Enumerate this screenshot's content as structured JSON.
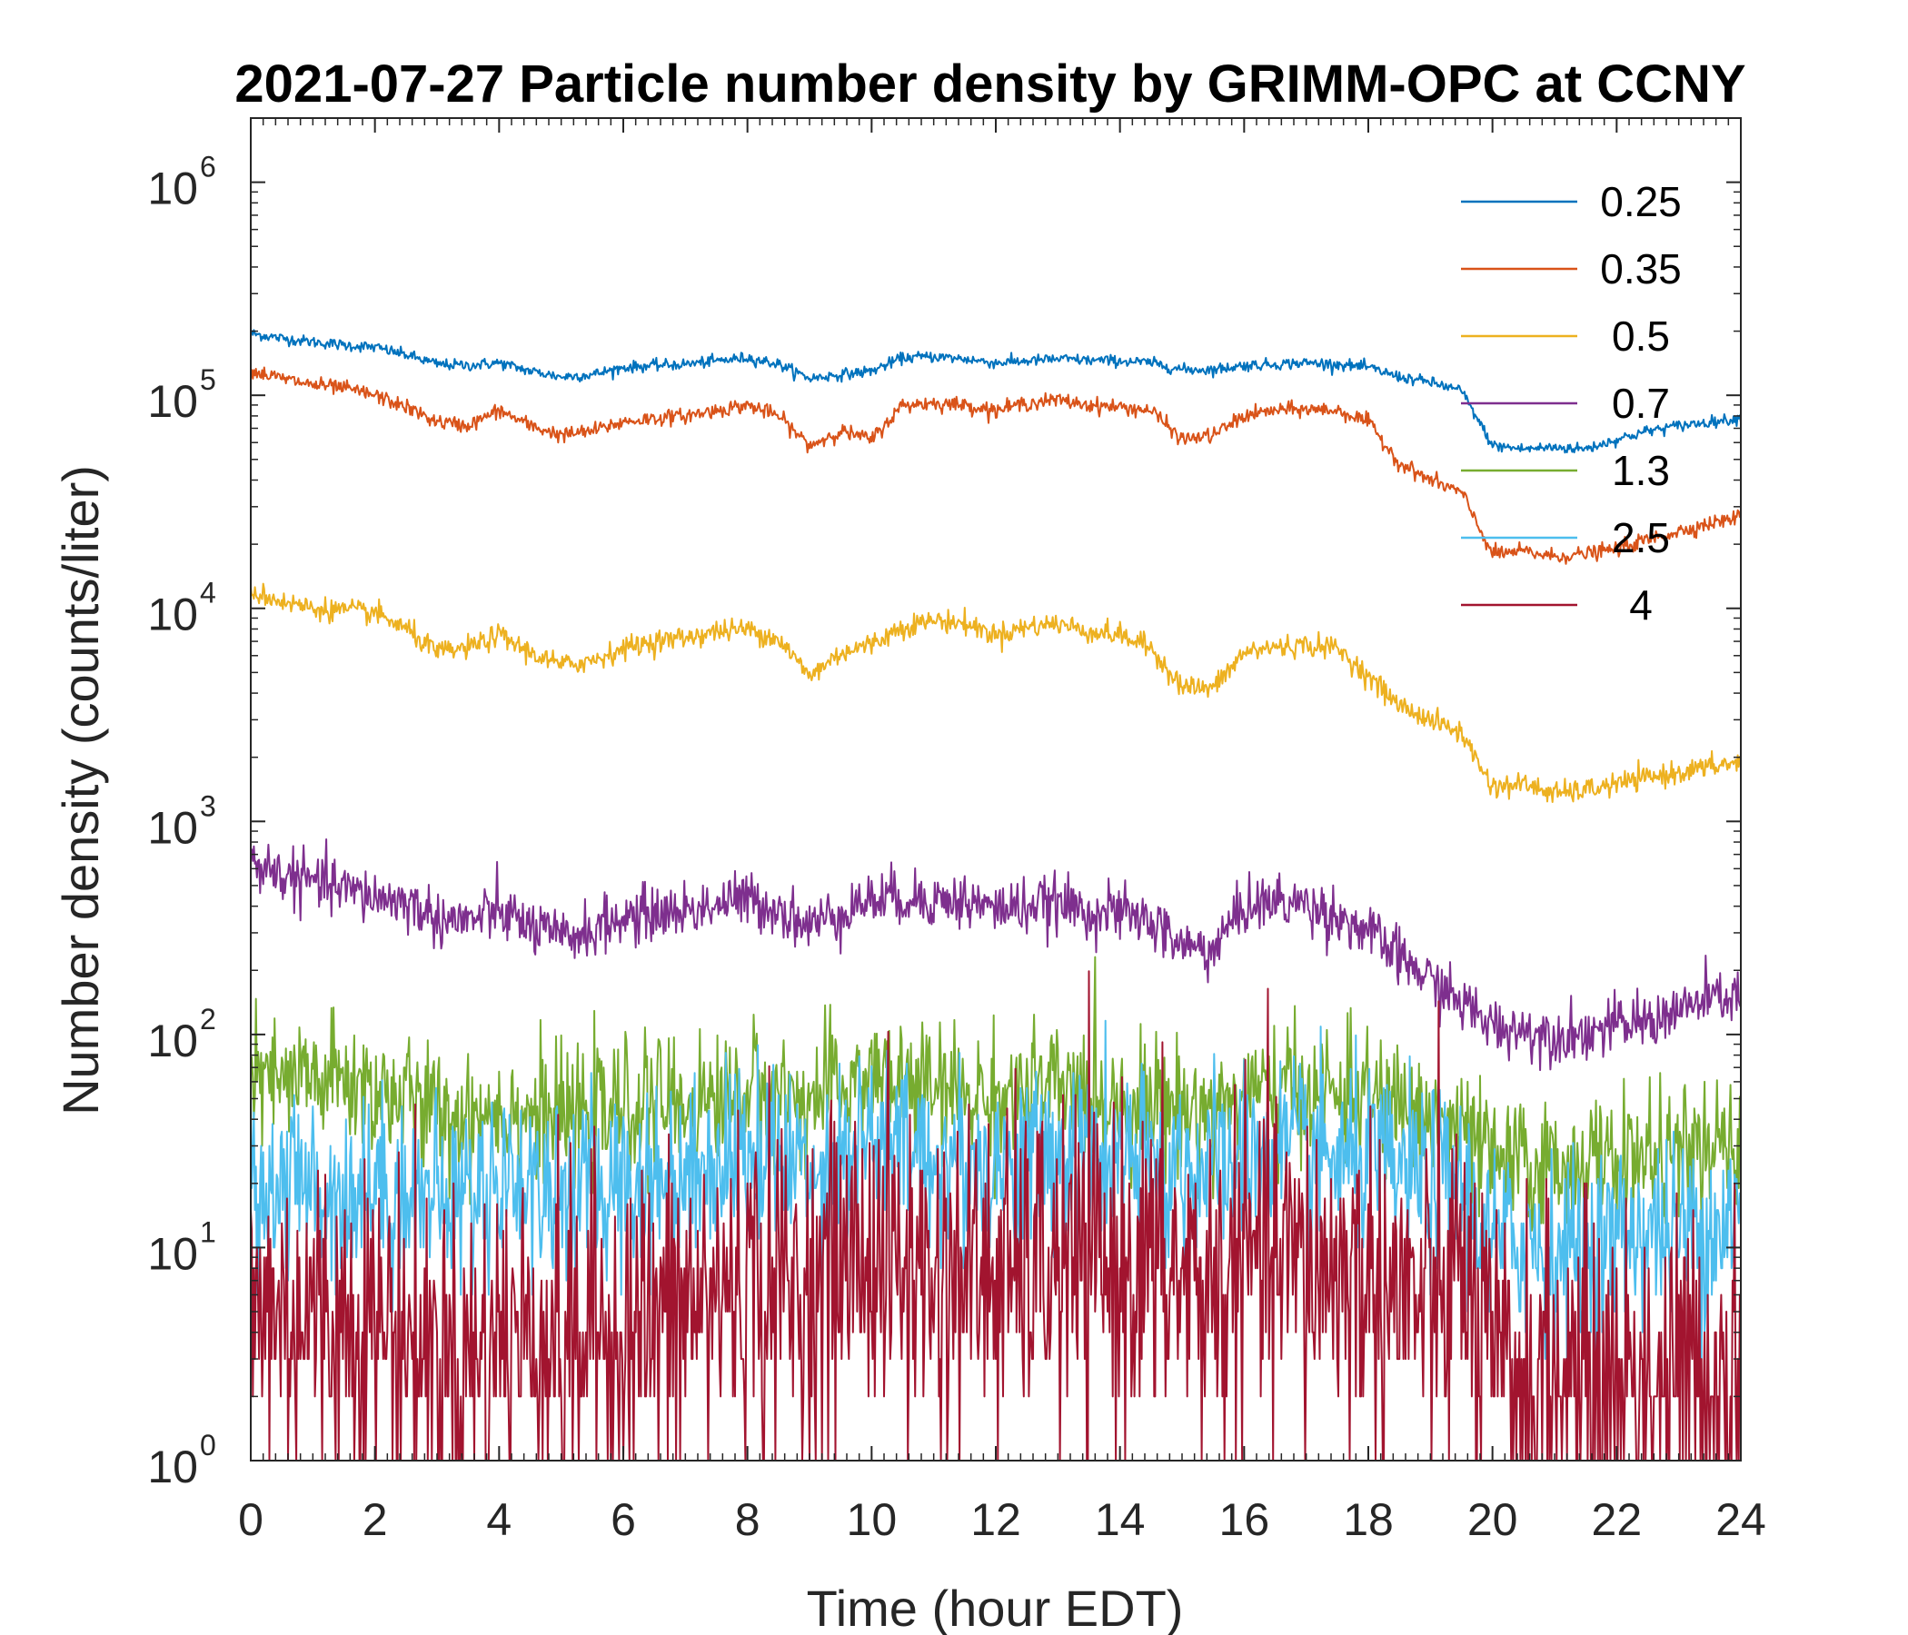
{
  "chart_data": {
    "type": "line",
    "title": "2021-07-27 Particle number density by GRIMM-OPC at CCNY",
    "xlabel": "Time (hour EDT)",
    "ylabel": "Number density (counts/liter)",
    "xlim": [
      0,
      24
    ],
    "ylim": [
      1,
      2000000
    ],
    "yscale": "log",
    "x_ticks": [
      0,
      2,
      4,
      6,
      8,
      10,
      12,
      14,
      16,
      18,
      20,
      22,
      24
    ],
    "y_ticks": [
      {
        "base": "10",
        "exp": "0",
        "value": 1
      },
      {
        "base": "10",
        "exp": "1",
        "value": 10
      },
      {
        "base": "10",
        "exp": "2",
        "value": 100
      },
      {
        "base": "10",
        "exp": "3",
        "value": 1000
      },
      {
        "base": "10",
        "exp": "4",
        "value": 10000
      },
      {
        "base": "10",
        "exp": "5",
        "value": 100000
      },
      {
        "base": "10",
        "exp": "6",
        "value": 1000000
      }
    ],
    "legend_position": "top-right",
    "x": [
      0,
      0.5,
      1,
      1.5,
      2,
      2.5,
      3,
      3.5,
      4,
      4.5,
      5,
      5.5,
      6,
      6.5,
      7,
      7.5,
      8,
      8.5,
      9,
      9.5,
      10,
      10.5,
      11,
      11.5,
      12,
      12.5,
      13,
      13.5,
      14,
      14.5,
      15,
      15.5,
      16,
      16.5,
      17,
      17.5,
      18,
      18.5,
      19,
      19.5,
      20,
      20.5,
      21,
      21.5,
      22,
      22.5,
      23,
      23.5,
      24
    ],
    "series": [
      {
        "name": "0.25",
        "color": "#0072BD",
        "noise": 0.03,
        "values": [
          195000,
          185000,
          178000,
          172000,
          168000,
          155000,
          140000,
          138000,
          142000,
          130000,
          122000,
          125000,
          135000,
          138000,
          140000,
          145000,
          150000,
          140000,
          120000,
          125000,
          130000,
          150000,
          152000,
          148000,
          142000,
          145000,
          148000,
          146000,
          145000,
          142000,
          132000,
          132000,
          138000,
          140000,
          142000,
          140000,
          135000,
          122000,
          115000,
          105000,
          58000,
          56000,
          57000,
          56000,
          62000,
          68000,
          72000,
          75000,
          78000
        ]
      },
      {
        "name": "0.35",
        "color": "#D95319",
        "noise": 0.04,
        "values": [
          130000,
          120000,
          112000,
          108000,
          100000,
          88000,
          75000,
          72000,
          85000,
          72000,
          65000,
          68000,
          75000,
          78000,
          80000,
          85000,
          90000,
          80000,
          58000,
          68000,
          62000,
          90000,
          92000,
          90000,
          85000,
          92000,
          95000,
          90000,
          88000,
          85000,
          62000,
          65000,
          80000,
          85000,
          86000,
          85000,
          75000,
          48000,
          40000,
          35000,
          18000,
          18500,
          17500,
          18000,
          19000,
          21000,
          23000,
          25000,
          27000
        ]
      },
      {
        "name": "0.5",
        "color": "#EDB120",
        "noise": 0.06,
        "values": [
          12000,
          10800,
          10000,
          9800,
          9500,
          8000,
          6200,
          6500,
          7500,
          6200,
          5400,
          5700,
          6500,
          7000,
          7300,
          7800,
          8000,
          7200,
          4800,
          6200,
          6800,
          8200,
          8800,
          8500,
          7500,
          8200,
          8500,
          7800,
          7500,
          6500,
          4300,
          4200,
          6200,
          6600,
          6700,
          6500,
          4800,
          3500,
          3000,
          2600,
          1450,
          1500,
          1350,
          1400,
          1500,
          1600,
          1700,
          1800,
          1900
        ]
      },
      {
        "name": "0.7",
        "color": "#7E2F8E",
        "noise": 0.15,
        "values": [
          650,
          560,
          520,
          480,
          440,
          420,
          350,
          340,
          380,
          320,
          280,
          310,
          350,
          370,
          380,
          410,
          430,
          390,
          320,
          380,
          430,
          440,
          430,
          420,
          390,
          400,
          410,
          380,
          370,
          340,
          260,
          250,
          400,
          420,
          410,
          360,
          300,
          230,
          180,
          140,
          110,
          105,
          100,
          102,
          110,
          115,
          130,
          145,
          155
        ]
      },
      {
        "name": "1.3",
        "color": "#77AC30",
        "noise": 0.35,
        "values": [
          60,
          58,
          62,
          60,
          55,
          50,
          42,
          42,
          45,
          42,
          40,
          42,
          45,
          48,
          46,
          50,
          55,
          52,
          48,
          56,
          65,
          58,
          55,
          52,
          50,
          54,
          55,
          52,
          50,
          48,
          45,
          44,
          52,
          54,
          55,
          52,
          50,
          46,
          40,
          35,
          25,
          24,
          24,
          25,
          26,
          27,
          27,
          28,
          28
        ]
      },
      {
        "name": "2.5",
        "color": "#4DBEEE",
        "noise": 0.5,
        "values": [
          18,
          20,
          19,
          18,
          20,
          18,
          17,
          17,
          22,
          20,
          18,
          19,
          20,
          21,
          22,
          26,
          28,
          26,
          24,
          28,
          32,
          28,
          26,
          25,
          24,
          26,
          27,
          26,
          25,
          24,
          24,
          24,
          26,
          28,
          27,
          25,
          24,
          22,
          20,
          20,
          10,
          11,
          10,
          10,
          11,
          12,
          12,
          13,
          14
        ]
      },
      {
        "name": "4",
        "color": "#A2142F",
        "noise": 0.9,
        "values": [
          5,
          5,
          5,
          4.5,
          4.5,
          4,
          3,
          3,
          4,
          4,
          3.5,
          4,
          4,
          4.5,
          5,
          6,
          7,
          6.5,
          6,
          8,
          10,
          8,
          7,
          7.5,
          7,
          7.5,
          8,
          8,
          8,
          7.5,
          7,
          6.5,
          8,
          8.5,
          8,
          7.5,
          7,
          6,
          5,
          8,
          2.5,
          2.5,
          2.5,
          2.3,
          2.4,
          2.5,
          2.5,
          2.6,
          2.6
        ]
      }
    ]
  }
}
